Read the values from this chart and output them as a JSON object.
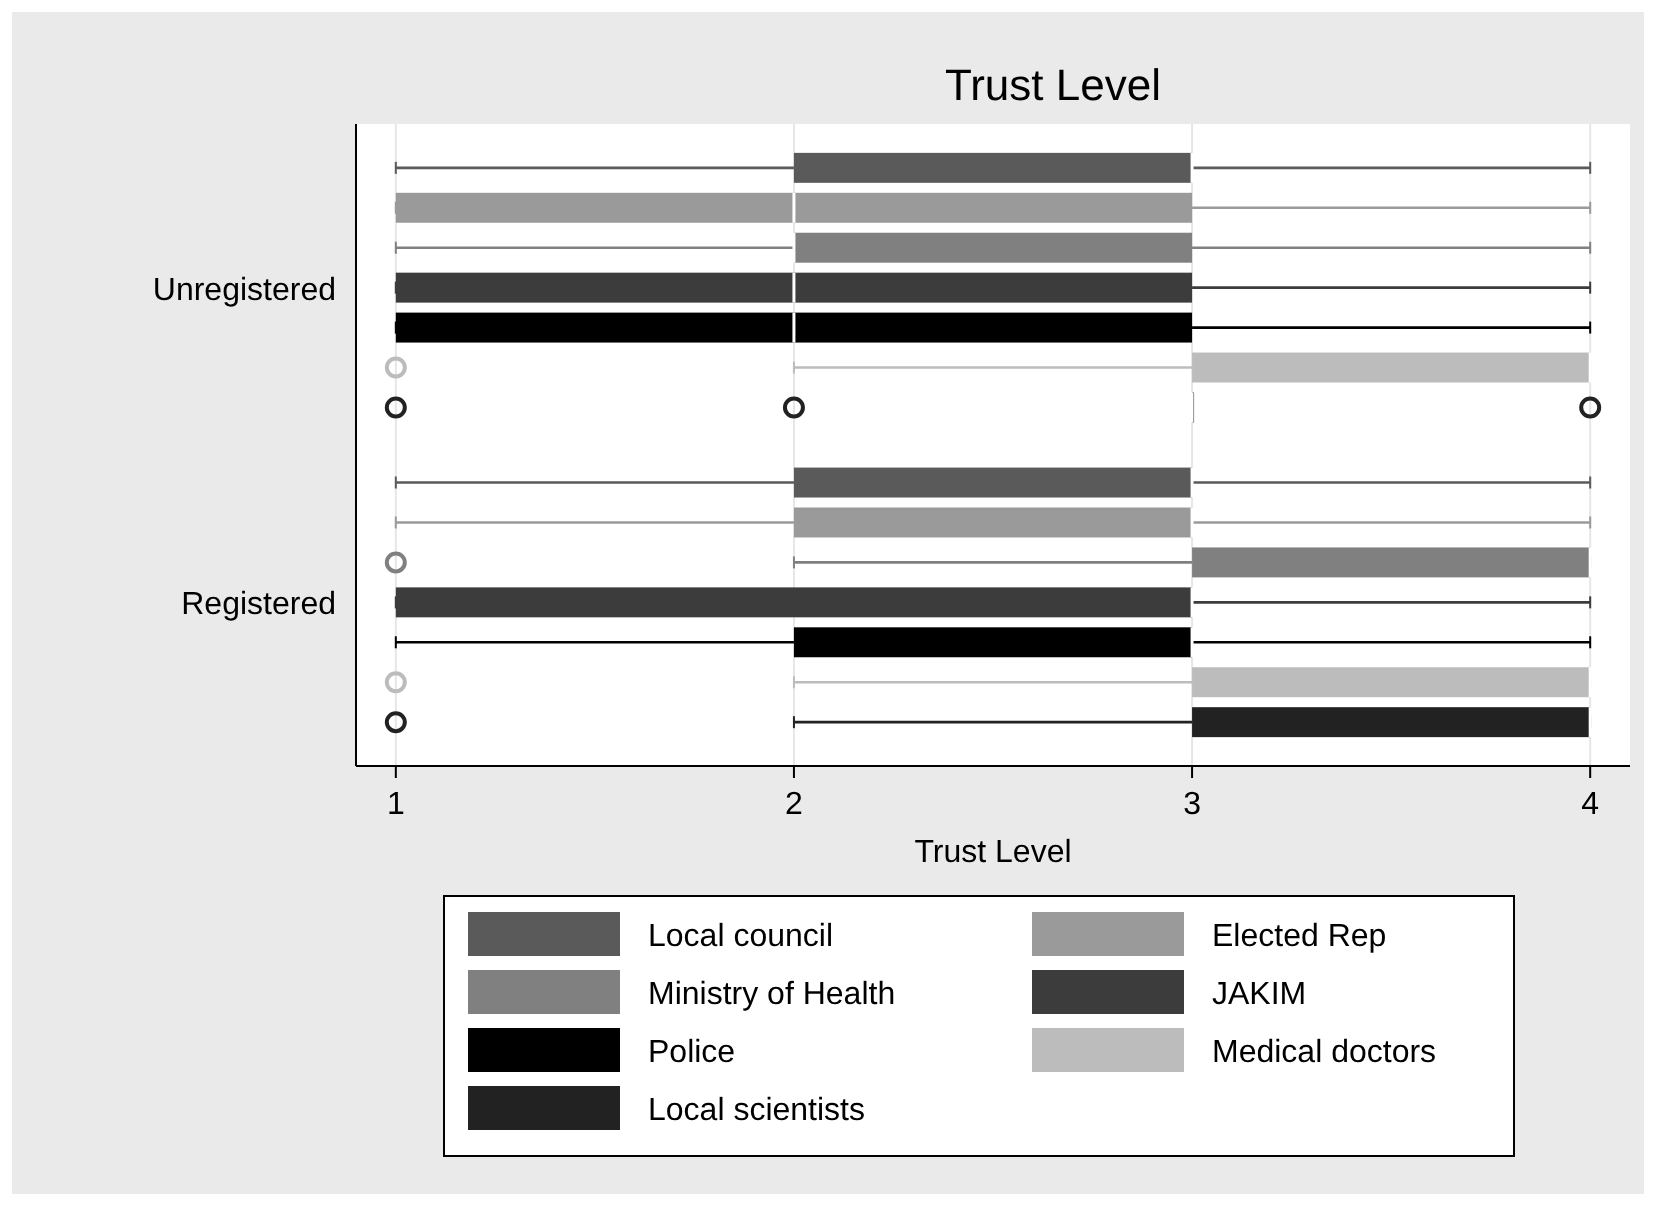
{
  "chart_data": {
    "type": "box",
    "title": "Trust Level",
    "xlabel": "Trust Level",
    "orientation": "horizontal",
    "categories": [
      "Unregistered",
      "Registered"
    ],
    "xlim": [
      0.9,
      4.1
    ],
    "xticks": [
      1,
      2,
      3,
      4
    ],
    "grid": "x",
    "legend": "bottom",
    "series": [
      {
        "name": "Local council",
        "color": "#5a5a5a",
        "boxes": [
          {
            "low": 1,
            "q1": 2,
            "median": 3,
            "q3": 3,
            "high": 4
          },
          {
            "low": 1,
            "q1": 2,
            "median": 3,
            "q3": 3,
            "high": 4
          }
        ]
      },
      {
        "name": "Elected Rep",
        "color": "#9a9a9a",
        "boxes": [
          {
            "low": 1,
            "q1": 1,
            "median": 2,
            "q3": 3,
            "high": 4
          },
          {
            "low": 1,
            "q1": 2,
            "median": 3,
            "q3": 3,
            "high": 4
          }
        ]
      },
      {
        "name": "Ministry of Health",
        "color": "#808080",
        "boxes": [
          {
            "low": 1,
            "q1": 2,
            "median": 2,
            "q3": 3,
            "high": 4
          },
          {
            "low": 2,
            "q1": 3,
            "median": 4,
            "q3": 4,
            "high": 4,
            "outliers": [
              1
            ]
          }
        ]
      },
      {
        "name": "JAKIM",
        "color": "#3c3c3c",
        "boxes": [
          {
            "low": 1,
            "q1": 1,
            "median": 2,
            "q3": 3,
            "high": 4
          },
          {
            "low": 1,
            "q1": 1,
            "median": 3,
            "q3": 3,
            "high": 4
          }
        ]
      },
      {
        "name": "Police",
        "color": "#000000",
        "boxes": [
          {
            "low": 1,
            "q1": 1,
            "median": 2,
            "q3": 3,
            "high": 4
          },
          {
            "low": 1,
            "q1": 2,
            "median": 3,
            "q3": 3,
            "high": 4
          }
        ]
      },
      {
        "name": "Medical doctors",
        "color": "#bcbcbc",
        "boxes": [
          {
            "low": 2,
            "q1": 3,
            "median": 4,
            "q3": 4,
            "high": 4,
            "outliers": [
              1
            ]
          },
          {
            "low": 2,
            "q1": 3,
            "median": 4,
            "q3": 4,
            "high": 4,
            "outliers": [
              1
            ]
          }
        ]
      },
      {
        "name": "Local scientists",
        "color": "#222222",
        "boxes": [
          {
            "low": 3,
            "q1": 3,
            "median": 3,
            "q3": 3,
            "high": 3,
            "outliers": [
              1,
              2,
              4
            ]
          },
          {
            "low": 2,
            "q1": 3,
            "median": 4,
            "q3": 4,
            "high": 4,
            "outliers": [
              1
            ]
          }
        ]
      }
    ]
  }
}
